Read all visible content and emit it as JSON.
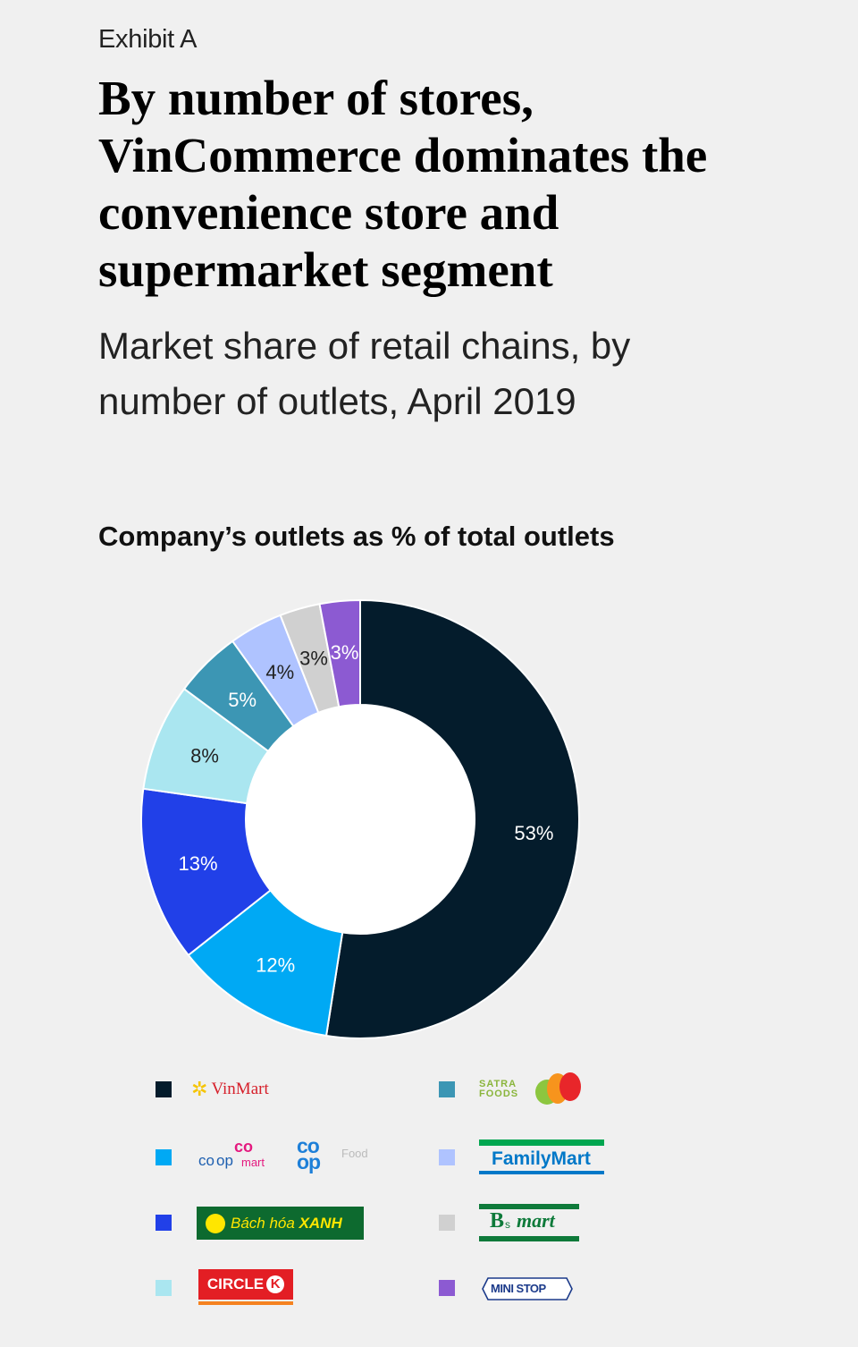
{
  "exhibit": "Exhibit A",
  "title": "By number of stores, VinCommerce dominates the convenience store and supermarket segment",
  "subtitle": "Market share of retail chains, by number of outlets, April 2019",
  "chart_data": {
    "type": "pie",
    "donut": true,
    "title": "Company’s outlets as % of total outlets",
    "series": [
      {
        "name": "VinMart",
        "value": 53,
        "label": "53%",
        "color": "#041c2c",
        "label_color": "#ffffff"
      },
      {
        "name": "coopmart / co.op Food",
        "value": 12,
        "label": "12%",
        "color": "#00a9f4",
        "label_color": "#ffffff"
      },
      {
        "name": "Bách hóa XANH",
        "value": 13,
        "label": "13%",
        "color": "#2140e8",
        "label_color": "#ffffff"
      },
      {
        "name": "CIRCLE K",
        "value": 8,
        "label": "8%",
        "color": "#aae6f0",
        "label_color": "#222222"
      },
      {
        "name": "SATRA FOODS",
        "value": 5,
        "label": "5%",
        "color": "#3c96b4",
        "label_color": "#ffffff"
      },
      {
        "name": "FamilyMart",
        "value": 4,
        "label": "4%",
        "color": "#afc3ff",
        "label_color": "#222222"
      },
      {
        "name": "B's mart",
        "value": 3,
        "label": "3%",
        "color": "#d0d0d0",
        "label_color": "#222222"
      },
      {
        "name": "MINISTOP",
        "value": 3,
        "label": "3%",
        "color": "#8c5ad2",
        "label_color": "#ffffff"
      }
    ],
    "legend_placement": "bottom"
  },
  "legend": {
    "vinmart": "VinMart",
    "coopmart_a": "co",
    "coopmart_b": "op",
    "coopmart_c": "mart",
    "coop_top": "co",
    "coop_bottom": "op",
    "coop_food": "Food",
    "bachhoa": "Bách hóa ",
    "bachhoa_bold": "XANH",
    "circlek": "CIRCLE",
    "circlek_k": "K",
    "satra_1": "SATRA",
    "satra_2": "FOODS",
    "familymart": "FamilyMart",
    "bsmart_b": "B",
    "bsmart_s": "s",
    "bsmart_mart": "mart",
    "ministop": "MINI STOP"
  }
}
